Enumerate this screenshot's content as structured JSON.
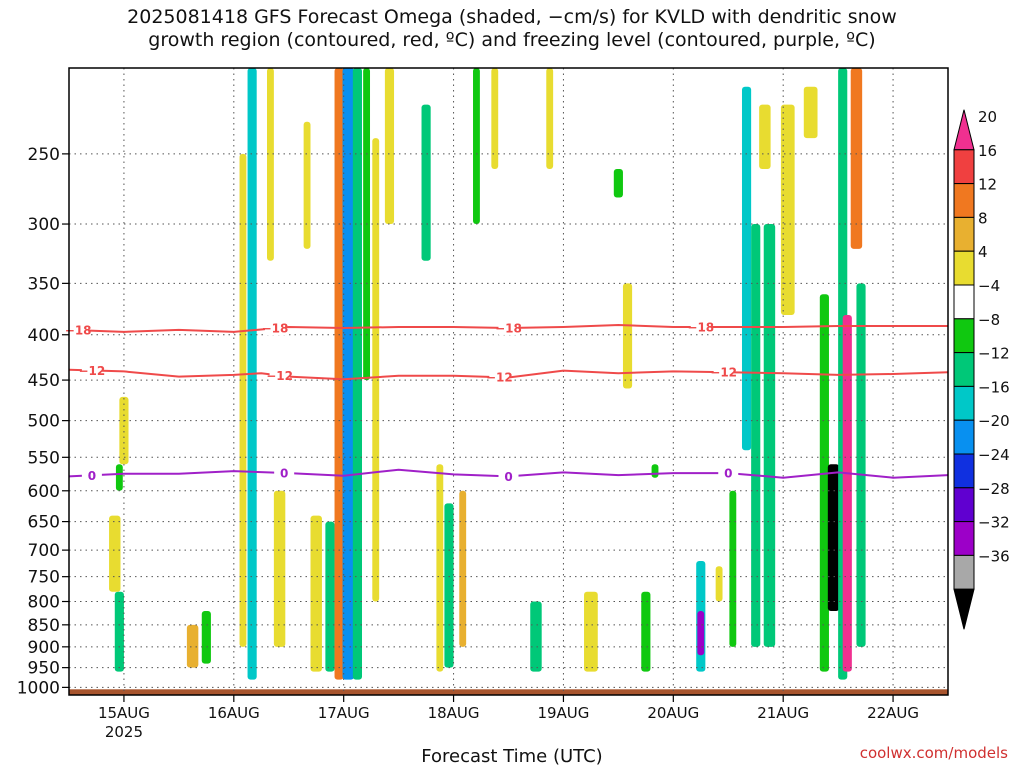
{
  "title": {
    "line1": "2025081418 GFS Forecast Omega (shaded, −cm/s) for KVLD with dendritic snow",
    "line2": "growth region (contoured, red, ºC) and freezing level (contoured, purple, ºC)"
  },
  "credit": "coolwx.com/models",
  "chart_data": {
    "type": "heatmap",
    "title": "2025081418 GFS Forecast Omega (shaded, −cm/s) for KVLD with dendritic snow growth region (contoured, red, ºC) and freezing level (contoured, purple, ºC)",
    "xlabel": "Forecast Time (UTC)",
    "ylabel": "",
    "x_ticks": [
      "15AUG",
      "16AUG",
      "17AUG",
      "18AUG",
      "19AUG",
      "20AUG",
      "21AUG",
      "22AUG"
    ],
    "x_year_label": "2025",
    "x_range_hours": [
      -12,
      180
    ],
    "y_ticks": [
      250,
      300,
      350,
      400,
      450,
      500,
      550,
      600,
      650,
      700,
      750,
      800,
      850,
      900,
      950,
      1000
    ],
    "y_range_hPa": [
      200,
      1020
    ],
    "y_scale": "log-pressure (top 200 hPa to bottom surface)",
    "grid": true,
    "colorbar": {
      "levels": [
        -36,
        -32,
        -28,
        -24,
        -20,
        -16,
        -12,
        -8,
        -4,
        4,
        8,
        12,
        16,
        20
      ],
      "colors": [
        "#000000",
        "#a8a8a8",
        "#9c00c8",
        "#6000d0",
        "#1030e0",
        "#0890f0",
        "#00c8c8",
        "#00c878",
        "#10c810",
        "#ffffff",
        "#e8dc30",
        "#e8b030",
        "#f07820",
        "#f04040",
        "#f03090"
      ]
    },
    "contours": [
      {
        "name": "dendritic-18",
        "label": "−18",
        "color": "#ef4a4a",
        "points": [
          [
            -12,
            395
          ],
          [
            0,
            397
          ],
          [
            12,
            395
          ],
          [
            24,
            397
          ],
          [
            36,
            392
          ],
          [
            48,
            393
          ],
          [
            60,
            392
          ],
          [
            72,
            392
          ],
          [
            84,
            393
          ],
          [
            96,
            392
          ],
          [
            108,
            390
          ],
          [
            120,
            392
          ],
          [
            132,
            392
          ],
          [
            144,
            392
          ],
          [
            156,
            391
          ],
          [
            168,
            391
          ],
          [
            180,
            391
          ]
        ]
      },
      {
        "name": "dendritic-12",
        "label": "−12",
        "color": "#ef4a4a",
        "points": [
          [
            -12,
            438
          ],
          [
            0,
            440
          ],
          [
            12,
            446
          ],
          [
            24,
            444
          ],
          [
            30,
            442
          ],
          [
            36,
            446
          ],
          [
            48,
            449
          ],
          [
            60,
            445
          ],
          [
            72,
            445
          ],
          [
            84,
            447
          ],
          [
            96,
            439
          ],
          [
            108,
            442
          ],
          [
            120,
            440
          ],
          [
            132,
            441
          ],
          [
            144,
            442
          ],
          [
            156,
            444
          ],
          [
            168,
            443
          ],
          [
            180,
            441
          ]
        ]
      },
      {
        "name": "freezing-level",
        "label": "0",
        "color": "#a020c8",
        "points": [
          [
            -12,
            578
          ],
          [
            0,
            574
          ],
          [
            12,
            574
          ],
          [
            24,
            570
          ],
          [
            36,
            573
          ],
          [
            48,
            577
          ],
          [
            60,
            568
          ],
          [
            72,
            575
          ],
          [
            84,
            578
          ],
          [
            96,
            572
          ],
          [
            108,
            576
          ],
          [
            120,
            573
          ],
          [
            132,
            573
          ],
          [
            144,
            580
          ],
          [
            156,
            572
          ],
          [
            168,
            580
          ],
          [
            180,
            576
          ]
        ]
      }
    ],
    "contour_label_positions": {
      "dendritic-18": [
        -10,
        33,
        84,
        126
      ],
      "dendritic-12": [
        -7,
        34,
        82,
        131
      ],
      "freezing-level": [
        -7,
        35,
        84,
        132
      ]
    },
    "omega_cells": [
      {
        "t": -1,
        "p": [
          560,
          600
        ],
        "w": 1.5,
        "v": -8
      },
      {
        "t": -1,
        "p": [
          780,
          960
        ],
        "w": 2.0,
        "v": -12
      },
      {
        "t": -2,
        "p": [
          640,
          780
        ],
        "w": 2.5,
        "v": 5
      },
      {
        "t": 0,
        "p": [
          470,
          560
        ],
        "w": 2.0,
        "v": 5
      },
      {
        "t": 15,
        "p": [
          850,
          950
        ],
        "w": 2.5,
        "v": 9
      },
      {
        "t": 18,
        "p": [
          820,
          940
        ],
        "w": 2.0,
        "v": -8
      },
      {
        "t": 28,
        "p": [
          200,
          980
        ],
        "w": 2.0,
        "v": -14
      },
      {
        "t": 26,
        "p": [
          250,
          900
        ],
        "w": 1.5,
        "v": 6
      },
      {
        "t": 32,
        "p": [
          200,
          330
        ],
        "w": 1.5,
        "v": 5
      },
      {
        "t": 40,
        "p": [
          230,
          320
        ],
        "w": 1.5,
        "v": 5
      },
      {
        "t": 34,
        "p": [
          600,
          900
        ],
        "w": 2.5,
        "v": 6
      },
      {
        "t": 42,
        "p": [
          640,
          960
        ],
        "w": 2.5,
        "v": 7
      },
      {
        "t": 45,
        "p": [
          650,
          960
        ],
        "w": 2.0,
        "v": -10
      },
      {
        "t": 47,
        "p": [
          200,
          980
        ],
        "w": 2.0,
        "v": 14
      },
      {
        "t": 49,
        "p": [
          200,
          980
        ],
        "w": 2.5,
        "v": -18
      },
      {
        "t": 51,
        "p": [
          200,
          980
        ],
        "w": 2.0,
        "v": -10
      },
      {
        "t": 53,
        "p": [
          200,
          450
        ],
        "w": 1.5,
        "v": -8
      },
      {
        "t": 55,
        "p": [
          240,
          800
        ],
        "w": 1.5,
        "v": 6
      },
      {
        "t": 58,
        "p": [
          200,
          300
        ],
        "w": 2.0,
        "v": 5
      },
      {
        "t": 66,
        "p": [
          220,
          330
        ],
        "w": 2.0,
        "v": -9
      },
      {
        "t": 69,
        "p": [
          560,
          960
        ],
        "w": 1.5,
        "v": 6
      },
      {
        "t": 71,
        "p": [
          620,
          950
        ],
        "w": 2.0,
        "v": -11
      },
      {
        "t": 74,
        "p": [
          600,
          900
        ],
        "w": 1.5,
        "v": 9
      },
      {
        "t": 77,
        "p": [
          200,
          300
        ],
        "w": 1.5,
        "v": -8
      },
      {
        "t": 81,
        "p": [
          200,
          260
        ],
        "w": 1.5,
        "v": 5
      },
      {
        "t": 90,
        "p": [
          800,
          960
        ],
        "w": 2.5,
        "v": -12
      },
      {
        "t": 93,
        "p": [
          200,
          260
        ],
        "w": 1.5,
        "v": 5
      },
      {
        "t": 102,
        "p": [
          780,
          960
        ],
        "w": 3.0,
        "v": 6
      },
      {
        "t": 108,
        "p": [
          260,
          280
        ],
        "w": 2.0,
        "v": -8
      },
      {
        "t": 110,
        "p": [
          350,
          460
        ],
        "w": 2.0,
        "v": 5
      },
      {
        "t": 114,
        "p": [
          780,
          960
        ],
        "w": 2.0,
        "v": -8
      },
      {
        "t": 116,
        "p": [
          560,
          580
        ],
        "w": 1.5,
        "v": -8
      },
      {
        "t": 126,
        "p": [
          720,
          960
        ],
        "w": 2.0,
        "v": -16
      },
      {
        "t": 126,
        "p": [
          820,
          920
        ],
        "w": 1.5,
        "v": -30
      },
      {
        "t": 130,
        "p": [
          730,
          800
        ],
        "w": 1.5,
        "v": 5
      },
      {
        "t": 133,
        "p": [
          600,
          900
        ],
        "w": 1.5,
        "v": -8
      },
      {
        "t": 136,
        "p": [
          210,
          540
        ],
        "w": 2.0,
        "v": -14
      },
      {
        "t": 138,
        "p": [
          300,
          900
        ],
        "w": 2.0,
        "v": -9
      },
      {
        "t": 140,
        "p": [
          220,
          260
        ],
        "w": 2.5,
        "v": 5
      },
      {
        "t": 141,
        "p": [
          300,
          900
        ],
        "w": 2.5,
        "v": -10
      },
      {
        "t": 145,
        "p": [
          220,
          380
        ],
        "w": 3.0,
        "v": 5
      },
      {
        "t": 150,
        "p": [
          210,
          240
        ],
        "w": 3.0,
        "v": 5
      },
      {
        "t": 153,
        "p": [
          360,
          960
        ],
        "w": 2.0,
        "v": -8
      },
      {
        "t": 155,
        "p": [
          560,
          820
        ],
        "w": 2.5,
        "v": -40
      },
      {
        "t": 157,
        "p": [
          200,
          980
        ],
        "w": 2.0,
        "v": -12
      },
      {
        "t": 158,
        "p": [
          380,
          960
        ],
        "w": 2.0,
        "v": 20
      },
      {
        "t": 160,
        "p": [
          200,
          320
        ],
        "w": 2.5,
        "v": 14
      },
      {
        "t": 161,
        "p": [
          350,
          900
        ],
        "w": 2.0,
        "v": -10
      }
    ],
    "surface_layer_hPa": [
      1005,
      1020
    ]
  }
}
